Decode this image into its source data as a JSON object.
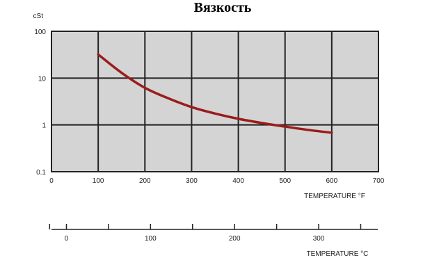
{
  "chart_data": {
    "type": "line",
    "title": "Вязкость",
    "ylabel": "cSt",
    "xlabel": "TEMPERATURE °F",
    "secondary_xlabel": "TEMPERATURE °C",
    "y_scale": "log",
    "ylim": [
      0.1,
      100
    ],
    "xlim": [
      0,
      700
    ],
    "y_ticks": [
      0.1,
      1,
      10,
      100
    ],
    "y_tick_labels": [
      "0.1",
      "1",
      "10",
      "100"
    ],
    "x_ticks": [
      0,
      100,
      200,
      300,
      400,
      500,
      600,
      700
    ],
    "x_tick_labels": [
      "0",
      "100",
      "200",
      "300",
      "400",
      "500",
      "600",
      "700"
    ],
    "celsius_labeled_ticks": [
      0,
      100,
      200,
      300
    ],
    "celsius_tick_labels": [
      "0",
      "100",
      "200",
      "300"
    ],
    "celsius_minor_ticks": [
      -20,
      50,
      150,
      250,
      350
    ],
    "grid": true,
    "plot_background": "#d4d4d4",
    "grid_color": "#222222",
    "series": [
      {
        "color": "#9b1c1c",
        "x": [
          100,
          150,
          200,
          250,
          300,
          350,
          400,
          450,
          500,
          550,
          600
        ],
        "y": [
          32,
          13,
          6.2,
          3.7,
          2.4,
          1.75,
          1.35,
          1.1,
          0.92,
          0.78,
          0.68
        ]
      }
    ]
  }
}
